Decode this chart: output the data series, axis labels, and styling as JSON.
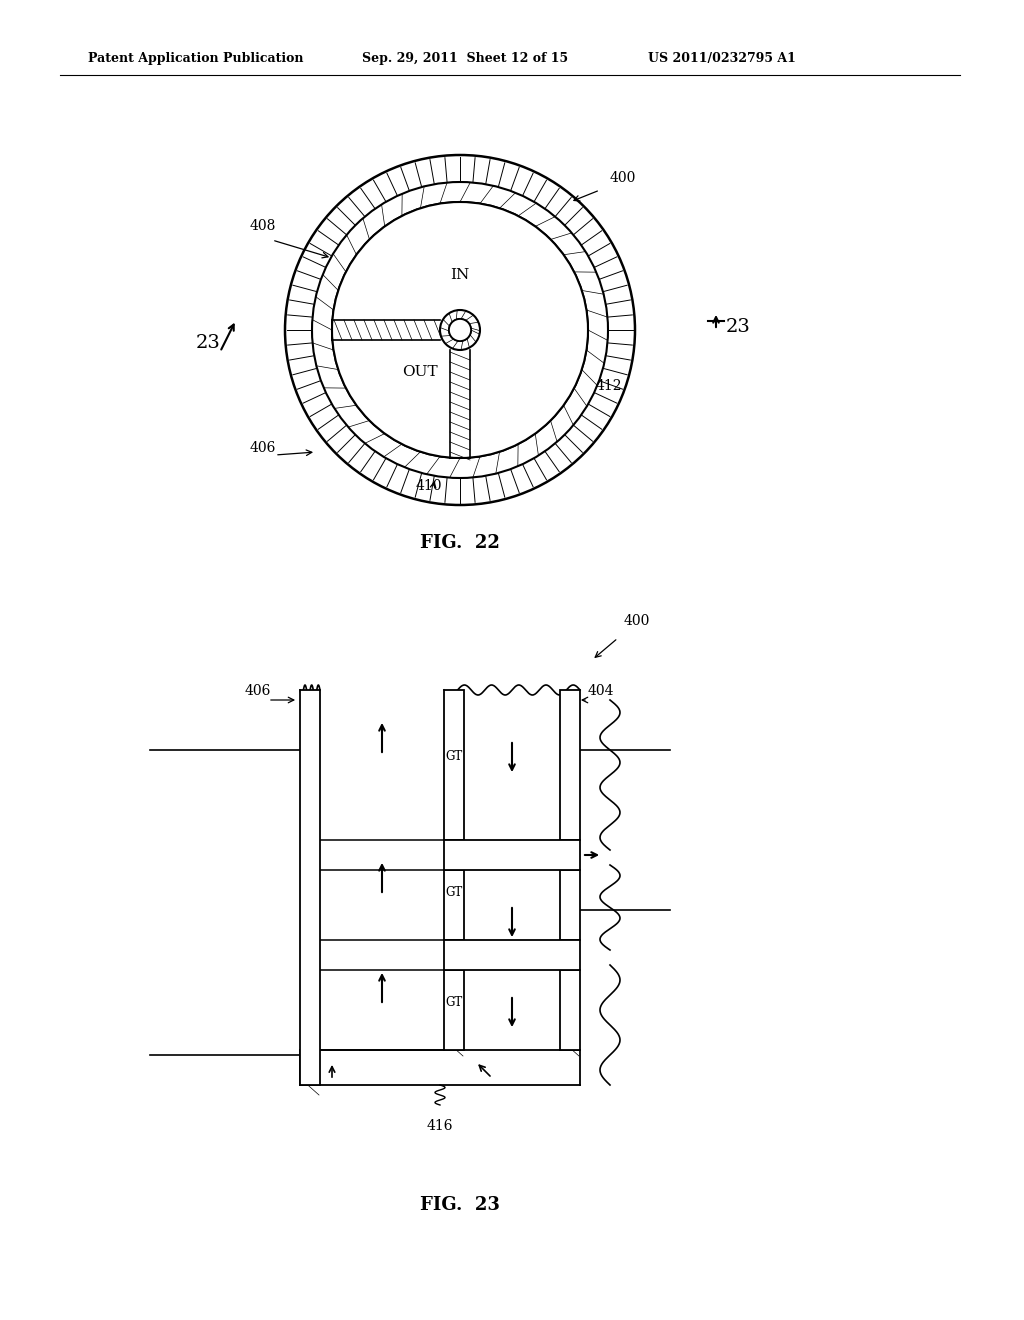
{
  "header_left": "Patent Application Publication",
  "header_mid": "Sep. 29, 2011  Sheet 12 of 15",
  "header_right": "US 2011/0232795 A1",
  "fig22_caption": "FIG.  22",
  "fig23_caption": "FIG.  23",
  "bg_color": "#ffffff",
  "line_color": "#000000"
}
